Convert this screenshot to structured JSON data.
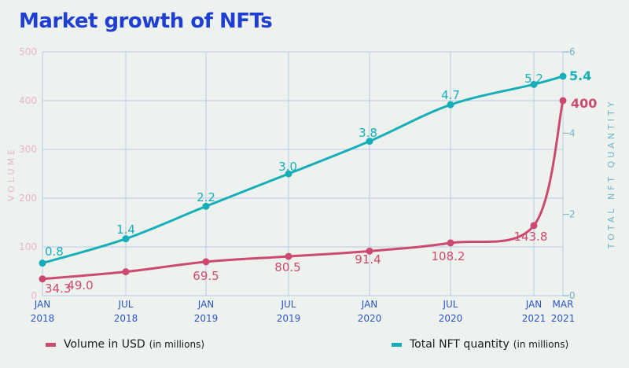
{
  "title": "Market growth of NFTs",
  "colors": {
    "volume": "#cc4a72",
    "quantity": "#16aeb8",
    "grid": "#b9c9e8",
    "left_axis_text": "#e8b4c4",
    "right_axis_text": "#6fb3c8",
    "x_tick": "#2b55c8",
    "title": "#1f3fd2"
  },
  "legend": {
    "volume_label": "Volume in USD",
    "volume_unit": "(in millions)",
    "quantity_label": "Total NFT quantity",
    "quantity_unit": "(in millions)"
  },
  "chart_data": {
    "type": "line",
    "title": "Market growth of NFTs",
    "categories": [
      [
        "JAN",
        "2018"
      ],
      [
        "JUL",
        "2018"
      ],
      [
        "JAN",
        "2019"
      ],
      [
        "JUL",
        "2019"
      ],
      [
        "JAN",
        "2020"
      ],
      [
        "JUL",
        "2020"
      ],
      [
        "JAN",
        "2021"
      ],
      [
        "MAR",
        "2021"
      ]
    ],
    "y_left": {
      "label": "VOLUME",
      "min": 0,
      "max": 500,
      "ticks": [
        "0",
        "100",
        "200",
        "300",
        "400",
        "500"
      ]
    },
    "y_right": {
      "label": "TOTAL NFT QUANTITY",
      "min": 0,
      "max": 6,
      "ticks": [
        "0",
        "2",
        "4",
        "6"
      ]
    },
    "grid": true,
    "legend_position": "bottom",
    "series": [
      {
        "name": "Volume in USD (in millions)",
        "axis": "left",
        "values": [
          34.3,
          49.0,
          69.5,
          80.5,
          91.4,
          108.2,
          143.8,
          400
        ],
        "labels": [
          "34.3",
          "49.0",
          "69.5",
          "80.5",
          "91.4",
          "108.2",
          "143.8",
          "400"
        ]
      },
      {
        "name": "Total NFT quantity (in millions)",
        "axis": "right",
        "values": [
          0.8,
          1.4,
          2.2,
          3.0,
          3.8,
          4.7,
          5.2,
          5.4
        ],
        "labels": [
          "0.8",
          "1.4",
          "2.2",
          "3.0",
          "3.8",
          "4.7",
          "5.2",
          "5.4"
        ]
      }
    ]
  }
}
